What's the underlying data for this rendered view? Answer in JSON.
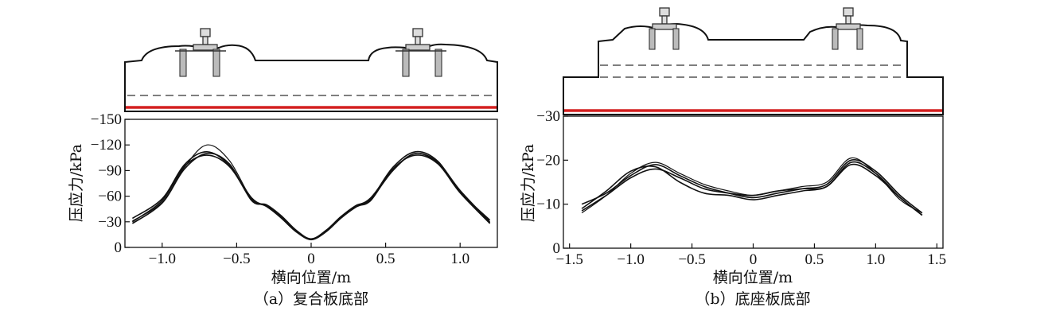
{
  "chart_data": [
    {
      "type": "line",
      "caption": "（a）复合板底部",
      "xlabel": "横向位置/m",
      "ylabel": "压应力/kPa",
      "xlim": [
        -1.25,
        1.25
      ],
      "ylim": [
        0,
        -150
      ],
      "xticks": [
        "−1.0",
        "−0.5",
        "0",
        "0.5",
        "1.0"
      ],
      "xtick_values": [
        -1.0,
        -0.5,
        0,
        0.5,
        1.0
      ],
      "yticks": [
        "0",
        "−30",
        "−60",
        "−90",
        "−120",
        "−150"
      ],
      "ytick_values": [
        0,
        -30,
        -60,
        -90,
        -120,
        -150
      ],
      "grid": false,
      "series": [
        {
          "x": [
            -1.2,
            -1.0,
            -0.85,
            -0.7,
            -0.55,
            -0.4,
            -0.3,
            -0.2,
            -0.1,
            0,
            0.1,
            0.2,
            0.3,
            0.4,
            0.55,
            0.7,
            0.85,
            1.0,
            1.2
          ],
          "values": [
            -31,
            -53,
            -94,
            -120,
            -102,
            -57,
            -48,
            -34,
            -18,
            -9,
            -18,
            -34,
            -47,
            -56,
            -90,
            -110,
            -100,
            -67,
            -30
          ]
        },
        {
          "x": [
            -1.2,
            -1.0,
            -0.85,
            -0.7,
            -0.55,
            -0.4,
            -0.3,
            -0.2,
            -0.1,
            0,
            0.1,
            0.2,
            0.3,
            0.4,
            0.55,
            0.7,
            0.85,
            1.0,
            1.2
          ],
          "values": [
            -34,
            -57,
            -97,
            -112,
            -96,
            -56,
            -49,
            -36,
            -19,
            -10,
            -19,
            -36,
            -49,
            -57,
            -94,
            -112,
            -101,
            -65,
            -32
          ]
        },
        {
          "x": [
            -1.2,
            -1.0,
            -0.85,
            -0.7,
            -0.55,
            -0.4,
            -0.3,
            -0.2,
            -0.1,
            0,
            0.1,
            0.2,
            0.3,
            0.4,
            0.55,
            0.7,
            0.85,
            1.0,
            1.2
          ],
          "values": [
            -28,
            -52,
            -92,
            -110,
            -98,
            -55,
            -50,
            -37,
            -20,
            -10,
            -20,
            -36,
            -48,
            -55,
            -92,
            -108,
            -98,
            -64,
            -28
          ]
        },
        {
          "x": [
            -1.2,
            -1.0,
            -0.85,
            -0.7,
            -0.55,
            -0.4,
            -0.3,
            -0.2,
            -0.1,
            0,
            0.1,
            0.2,
            0.3,
            0.4,
            0.55,
            0.7,
            0.85,
            1.0,
            1.2
          ],
          "values": [
            -30,
            -55,
            -95,
            -108,
            -95,
            -58,
            -48,
            -35,
            -19,
            -9,
            -19,
            -35,
            -48,
            -58,
            -91,
            -110,
            -99,
            -66,
            -29
          ]
        }
      ]
    },
    {
      "type": "line",
      "caption": "（b）底座板底部",
      "xlabel": "横向位置/m",
      "ylabel": "压应力/kPa",
      "xlim": [
        -1.55,
        1.55
      ],
      "ylim": [
        0,
        -30
      ],
      "xticks": [
        "−1.5",
        "−1.0",
        "−0.5",
        "0",
        "0.5",
        "1.0",
        "1.5"
      ],
      "xtick_values": [
        -1.5,
        -1.0,
        -0.5,
        0,
        0.5,
        1.0,
        1.5
      ],
      "yticks": [
        "0",
        "−10",
        "−20",
        "−30"
      ],
      "ytick_values": [
        0,
        -10,
        -20,
        -30
      ],
      "grid": false,
      "series": [
        {
          "x": [
            -1.4,
            -1.2,
            -1.0,
            -0.8,
            -0.6,
            -0.4,
            -0.2,
            0,
            0.2,
            0.4,
            0.6,
            0.8,
            1.0,
            1.2,
            1.38
          ],
          "values": [
            -8,
            -12,
            -17,
            -19.5,
            -17,
            -14.5,
            -13,
            -12,
            -13,
            -14,
            -15,
            -20.5,
            -17,
            -11,
            -8
          ]
        },
        {
          "x": [
            -1.4,
            -1.2,
            -1.0,
            -0.8,
            -0.6,
            -0.4,
            -0.2,
            0,
            0.2,
            0.4,
            0.6,
            0.8,
            1.0,
            1.2,
            1.38
          ],
          "values": [
            -9,
            -13,
            -17.5,
            -18.5,
            -15,
            -12.5,
            -12,
            -11,
            -12,
            -13,
            -14,
            -19,
            -16.5,
            -11.5,
            -7.5
          ]
        },
        {
          "x": [
            -1.4,
            -1.2,
            -1.0,
            -0.8,
            -0.6,
            -0.4,
            -0.2,
            0,
            0.2,
            0.4,
            0.6,
            0.8,
            1.0,
            1.2,
            1.38
          ],
          "values": [
            -10,
            -12.5,
            -16.5,
            -19,
            -16.5,
            -14,
            -12.5,
            -11.5,
            -12.5,
            -13.5,
            -14.5,
            -20,
            -17.5,
            -12,
            -8
          ]
        },
        {
          "x": [
            -1.4,
            -1.2,
            -1.0,
            -0.8,
            -0.6,
            -0.4,
            -0.2,
            0,
            0.2,
            0.4,
            0.6,
            0.8,
            1.0,
            1.2,
            1.38
          ],
          "values": [
            -8.5,
            -12,
            -16,
            -18,
            -16,
            -13.5,
            -12.5,
            -12,
            -13,
            -13.5,
            -14,
            -19.5,
            -17,
            -11.5,
            -7.5
          ]
        }
      ]
    }
  ]
}
